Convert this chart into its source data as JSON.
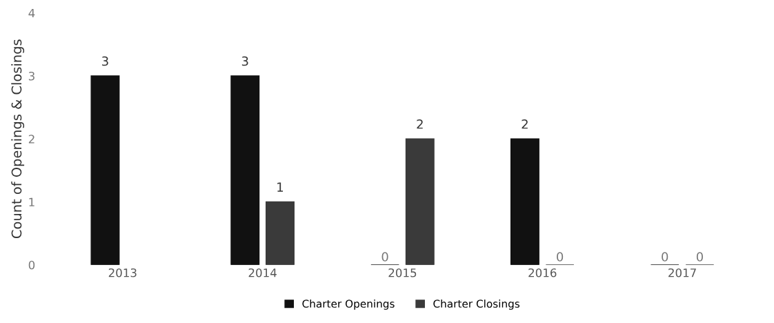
{
  "chart_data": {
    "type": "bar",
    "ylabel": "Count of Openings & Closings",
    "categories": [
      "2013",
      "2014",
      "2015",
      "2016",
      "2017"
    ],
    "series": [
      {
        "name": "Charter Openings",
        "color": "#111111",
        "values": [
          3,
          3,
          0,
          2,
          0
        ],
        "value_labels": [
          "3",
          "3",
          "0",
          "2",
          "0"
        ]
      },
      {
        "name": "Charter Closings",
        "color": "#3a3a3a",
        "values": [
          null,
          1,
          2,
          0,
          0
        ],
        "value_labels": [
          null,
          "1",
          "2",
          "0",
          "0"
        ]
      }
    ],
    "ylim": [
      0,
      4
    ],
    "yticks": [
      0,
      1,
      2,
      3,
      4
    ],
    "grid": false,
    "legend": "bottom"
  }
}
